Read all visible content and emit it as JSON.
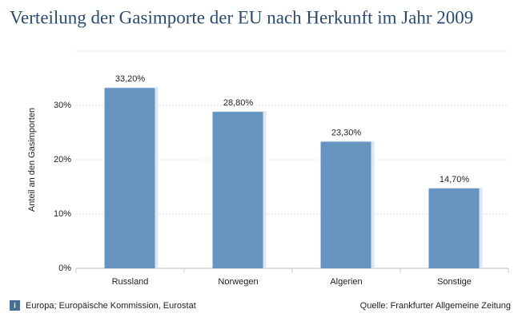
{
  "chart_data": {
    "type": "bar",
    "title": "Verteilung der Gasimporte der EU nach Herkunft im Jahr 2009",
    "y_label": "Anteil an den Gasimporten",
    "categories": [
      "Russland",
      "Norwegen",
      "Algerien",
      "Sonstige"
    ],
    "values": [
      33.2,
      28.8,
      23.3,
      14.7
    ],
    "value_labels": [
      "33,20%",
      "28,80%",
      "23,30%",
      "14,70%"
    ],
    "color": "#6694c0",
    "ylim": [
      0,
      40
    ],
    "yticks": [
      {
        "value": 0,
        "label": "0%"
      },
      {
        "value": 10,
        "label": "10%"
      },
      {
        "value": 20,
        "label": "20%"
      },
      {
        "value": 30,
        "label": "30%"
      }
    ],
    "grid": true,
    "source": "Europa; Europäische Kommission, Eurostat",
    "credit": "Quelle: Frankfurter Allgemeine Zeitung"
  }
}
